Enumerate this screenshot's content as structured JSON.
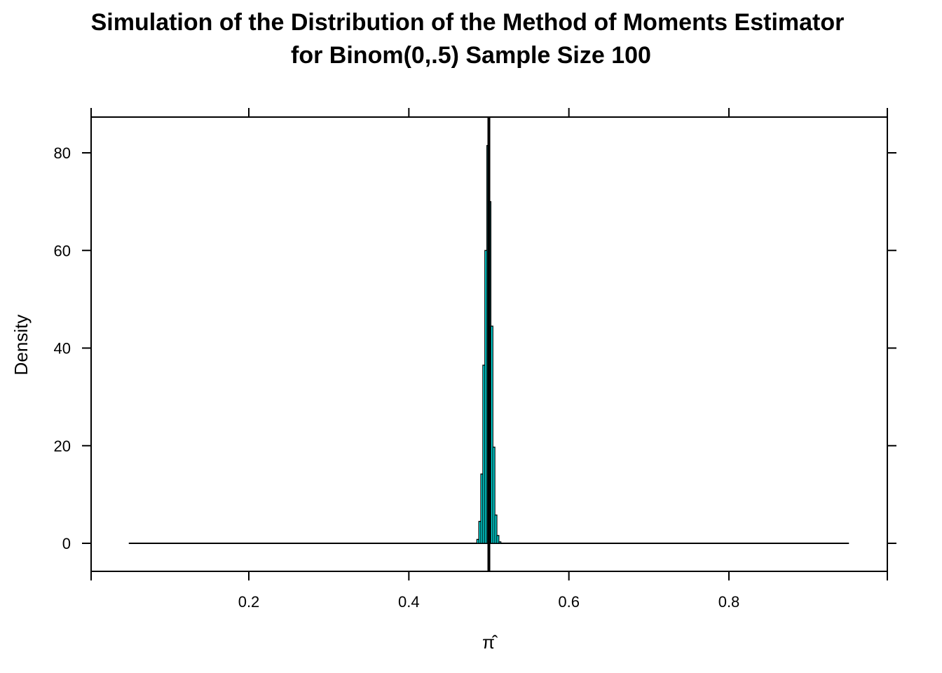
{
  "chart_data": {
    "type": "bar",
    "title_line1": "Simulation of the Distribution of the Method of Moments Estimator",
    "title_line2": "for Binom(0,.5) Sample Size 100",
    "xlabel": "π̂",
    "ylabel": "Density",
    "xlim": [
      0.05,
      0.95
    ],
    "ylim": [
      0,
      80
    ],
    "xticks": [
      {
        "value": 0.2,
        "label": "0.2"
      },
      {
        "value": 0.4,
        "label": "0.4"
      },
      {
        "value": 0.6,
        "label": "0.6"
      },
      {
        "value": 0.8,
        "label": "0.8"
      }
    ],
    "yticks": [
      {
        "value": 0,
        "label": "0"
      },
      {
        "value": 20,
        "label": "20"
      },
      {
        "value": 40,
        "label": "40"
      },
      {
        "value": 60,
        "label": "60"
      },
      {
        "value": 80,
        "label": "80"
      }
    ],
    "bin_width": 0.0025,
    "bins": [
      {
        "start": 0.485,
        "density": 0.8
      },
      {
        "start": 0.4875,
        "density": 4.5
      },
      {
        "start": 0.49,
        "density": 14.2
      },
      {
        "start": 0.4925,
        "density": 36.5
      },
      {
        "start": 0.495,
        "density": 60.0
      },
      {
        "start": 0.4975,
        "density": 81.5
      },
      {
        "start": 0.5,
        "density": 70.0
      },
      {
        "start": 0.5025,
        "density": 44.5
      },
      {
        "start": 0.505,
        "density": 19.7
      },
      {
        "start": 0.5075,
        "density": 5.8
      },
      {
        "start": 0.51,
        "density": 1.6
      },
      {
        "start": 0.5125,
        "density": 0.3
      }
    ],
    "density_curve_range": [
      0.05,
      0.95
    ],
    "reference_line_x": 0.5,
    "bar_color": "#00ffff",
    "outline_color": "#000000"
  }
}
